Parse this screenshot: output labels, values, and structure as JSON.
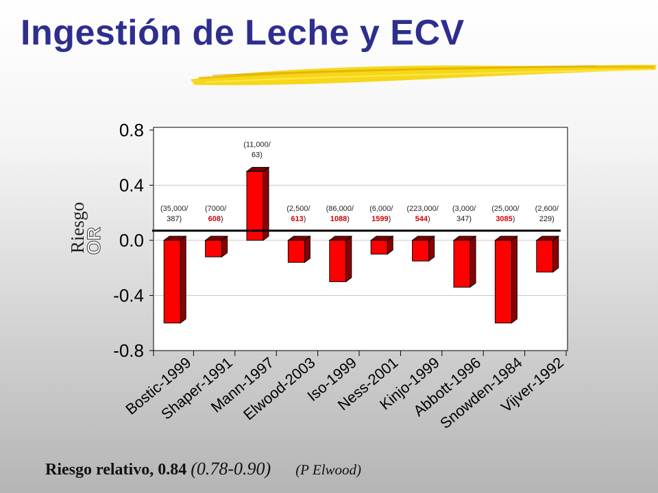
{
  "title": "Ingestión de Leche y ECV",
  "chart_data": {
    "type": "bar",
    "ylabel_serif": "Riesgo",
    "ylabel_sans": "OR",
    "ylim": [
      -0.8,
      0.8
    ],
    "yticks": [
      "0.8",
      "0.4",
      "0.0",
      "-0.4",
      "-0.8"
    ],
    "grid": true,
    "reference_line": 0.07,
    "categories": [
      "Bostic-1999",
      "Shaper-1991",
      "Mann-1997",
      "Elwood-2003",
      "Iso-1999",
      "Ness-2001",
      "Kinjo-1999",
      "Abbott-1996",
      "Snowden-1984",
      "Vijver-1992"
    ],
    "values": [
      -0.6,
      -0.12,
      0.5,
      -0.16,
      -0.3,
      -0.1,
      -0.15,
      -0.34,
      -0.6,
      -0.23
    ],
    "annotations": [
      {
        "line1": "(35,000/",
        "n": "387",
        "n_color": "#111111"
      },
      {
        "line1": "(7000/",
        "n": "608",
        "n_color": "#d40000"
      },
      {
        "line1": "(11,000/",
        "n": "63",
        "n_color": "#111111"
      },
      {
        "line1": "(2,500/",
        "n": "613",
        "n_color": "#d40000"
      },
      {
        "line1": "(86,000/",
        "n": "1088",
        "n_color": "#d40000"
      },
      {
        "line1": "(6,000/",
        "n": "1599",
        "n_color": "#d40000"
      },
      {
        "line1": "(223,000/",
        "n": "544",
        "n_color": "#d40000"
      },
      {
        "line1": "(3,000/",
        "n": "347",
        "n_color": "#111111"
      },
      {
        "line1": "(25,000/",
        "n": "3085",
        "n_color": "#d40000"
      },
      {
        "line1": "(2,600/",
        "n": "229",
        "n_color": "#111111"
      }
    ],
    "colors": {
      "bar_face": "#ff0000",
      "bar_side": "#8c0000",
      "bar_top": "#7a0000",
      "annotation_highlight": "#d40000"
    }
  },
  "footer": {
    "main": "Riesgo relativo, 0.84",
    "ci": "(0.78-0.90)",
    "cite": "(P Elwood)"
  }
}
